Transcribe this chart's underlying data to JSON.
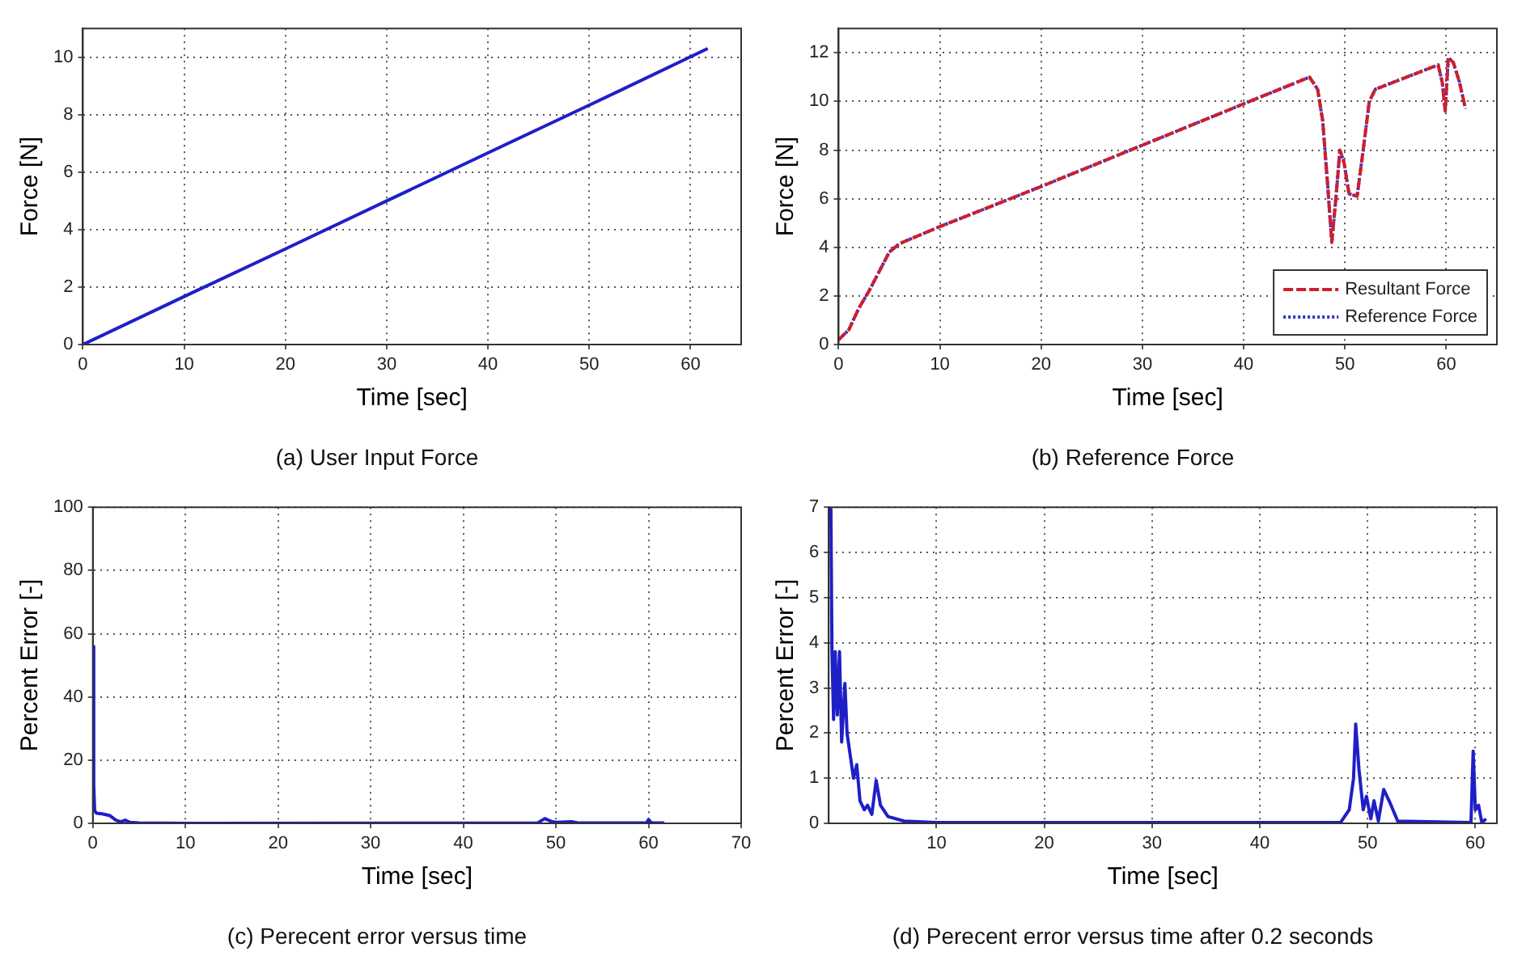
{
  "chart_data": [
    {
      "type": "line",
      "title": "(a) User Input Force",
      "xlabel": "Time [sec]",
      "ylabel": "Force [N]",
      "xlim": [
        0,
        65
      ],
      "xticks": [
        0,
        10,
        20,
        30,
        40,
        50,
        60
      ],
      "ylim": [
        0,
        11
      ],
      "yticks": [
        0,
        2,
        4,
        6,
        8,
        10
      ],
      "grid": true,
      "marker": "none",
      "legend": false,
      "series": [
        {
          "color": "#1f1fc8",
          "line_style": "solid",
          "x": [
            0,
            10,
            20,
            30,
            40,
            50,
            61.7
          ],
          "values": [
            0,
            1.67,
            3.33,
            5,
            6.67,
            8.33,
            10.3
          ]
        }
      ]
    },
    {
      "type": "line",
      "title": "(b) Reference Force",
      "xlabel": "Time [sec]",
      "ylabel": "Force [N]",
      "xlim": [
        0,
        65
      ],
      "xticks": [
        0,
        10,
        20,
        30,
        40,
        50,
        60
      ],
      "ylim": [
        0,
        13
      ],
      "yticks": [
        0,
        2,
        4,
        6,
        8,
        10,
        12
      ],
      "grid": true,
      "marker": "none",
      "legend": "bottom right",
      "series": [
        {
          "name": "Resultant Force",
          "color": "#cc1f2f",
          "line_style": "dashed",
          "x": [
            0,
            1,
            2,
            3,
            4,
            5,
            6,
            8,
            10,
            20,
            30,
            40,
            46.5,
            47.3,
            47.8,
            48.3,
            48.7,
            49.1,
            49.5,
            49.9,
            50.4,
            51.2,
            51.8,
            52.4,
            53,
            59.2,
            59.6,
            59.9,
            60.2,
            60.7,
            61.3,
            61.9
          ],
          "values": [
            0.2,
            0.6,
            1.5,
            2.2,
            3,
            3.8,
            4.15,
            4.5,
            4.85,
            6.5,
            8.2,
            9.9,
            11,
            10.5,
            9.2,
            6.5,
            4.2,
            6,
            8,
            7.5,
            6.2,
            6.1,
            8,
            10,
            10.5,
            11.5,
            10.8,
            9.6,
            11.8,
            11.6,
            10.8,
            9.7
          ]
        },
        {
          "name": "Reference Force",
          "color": "#3333cc",
          "line_style": "dotted",
          "x": [
            0,
            1,
            2,
            3,
            4,
            5,
            6,
            8,
            10,
            20,
            30,
            40,
            46.5,
            47.3,
            47.8,
            48.3,
            48.7,
            49.1,
            49.5,
            49.9,
            50.4,
            51.2,
            51.8,
            52.4,
            53,
            59.2,
            59.6,
            59.9,
            60.2,
            60.7,
            61.3,
            61.9
          ],
          "values": [
            0.2,
            0.6,
            1.5,
            2.2,
            3,
            3.8,
            4.15,
            4.5,
            4.85,
            6.5,
            8.2,
            9.9,
            11,
            10.5,
            9.2,
            6.5,
            4.2,
            6,
            8,
            7.5,
            6.2,
            6.1,
            8,
            10,
            10.5,
            11.5,
            10.8,
            9.6,
            11.8,
            11.6,
            10.8,
            9.7
          ]
        }
      ]
    },
    {
      "type": "line",
      "title": "(c) Perecent error versus time",
      "xlabel": "Time [sec]",
      "ylabel": "Percent Error [-]",
      "xlim": [
        0,
        70
      ],
      "xticks": [
        0,
        10,
        20,
        30,
        40,
        50,
        60,
        70
      ],
      "ylim": [
        0,
        100
      ],
      "yticks": [
        0,
        20,
        40,
        60,
        80,
        100
      ],
      "grid": true,
      "marker": "none",
      "legend": false,
      "series": [
        {
          "color": "#1f1fc8",
          "line_style": "solid",
          "x": [
            0,
            0.1,
            0.2,
            0.4,
            1,
            1.8,
            2.5,
            3,
            3.5,
            4,
            5,
            10,
            48,
            48.8,
            49.5,
            50,
            51.7,
            52.5,
            59.8,
            60,
            60.3,
            61.7
          ],
          "values": [
            56,
            12,
            4,
            3.2,
            3,
            2.5,
            1,
            0.5,
            1,
            0.3,
            0.1,
            0,
            0.1,
            1.5,
            0.6,
            0.3,
            0.5,
            0.1,
            0.1,
            1.2,
            0.1,
            0.1
          ]
        }
      ]
    },
    {
      "type": "line",
      "title": "(d) Perecent error versus time after 0.2 seconds",
      "xlabel": "Time [sec]",
      "ylabel": "Percent Error [-]",
      "xlim": [
        0,
        62
      ],
      "xticks": [
        10,
        20,
        30,
        40,
        50,
        60
      ],
      "ylim": [
        0,
        7
      ],
      "yticks": [
        0,
        1,
        2,
        3,
        4,
        5,
        6,
        7
      ],
      "grid": true,
      "marker": "none",
      "legend": false,
      "series": [
        {
          "color": "#1f1fc8",
          "line_style": "solid",
          "x": [
            0.2,
            0.3,
            0.45,
            0.6,
            0.8,
            1,
            1.2,
            1.5,
            1.7,
            2,
            2.3,
            2.6,
            2.9,
            3.3,
            3.6,
            4,
            4.4,
            4.8,
            5.5,
            7,
            10,
            47.5,
            48.3,
            48.7,
            48.9,
            49.2,
            49.6,
            49.9,
            50.3,
            50.6,
            51,
            51.5,
            52,
            52.8,
            59.6,
            59.8,
            60,
            60.3,
            60.6,
            61
          ],
          "values": [
            7,
            3.8,
            2.3,
            3.8,
            2.4,
            3.8,
            1.8,
            3.1,
            2,
            1.5,
            1,
            1.3,
            0.5,
            0.3,
            0.4,
            0.2,
            0.95,
            0.4,
            0.15,
            0.05,
            0.02,
            0.02,
            0.3,
            1,
            2.2,
            1.2,
            0.3,
            0.6,
            0.1,
            0.5,
            0.05,
            0.75,
            0.5,
            0.05,
            0.02,
            1.6,
            0.3,
            0.4,
            0.02,
            0.1
          ]
        }
      ]
    }
  ]
}
